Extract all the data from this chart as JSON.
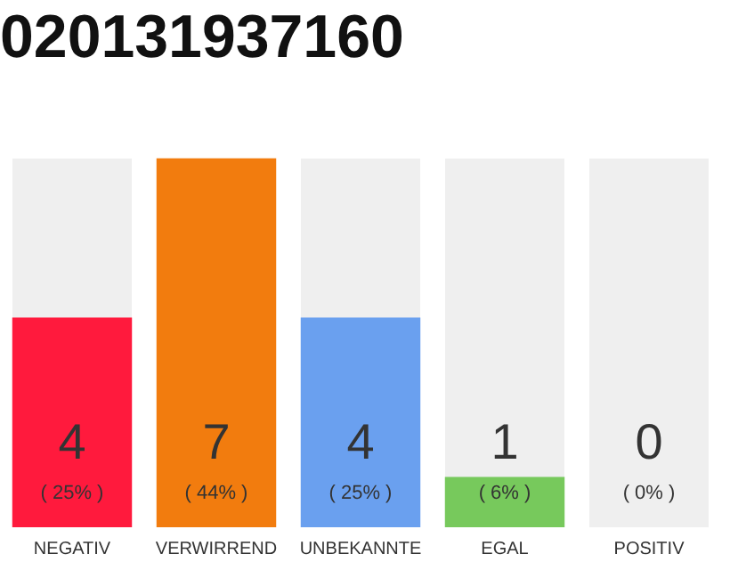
{
  "chart_data": {
    "type": "bar",
    "title": "020131937160",
    "categories": [
      "NEGATIV",
      "VERWIRREND",
      "UNBEKANNTE",
      "EGAL",
      "POSITIV"
    ],
    "values": [
      25,
      44,
      25,
      6,
      0
    ],
    "colors": [
      "#ff1a3d",
      "#f27c0e",
      "#6aa0ef",
      "#77c95c",
      "#cccccc"
    ],
    "value_labels": [
      "4\n( 25% )",
      "7\n( 44% )",
      "4\n( 25% )",
      "1\n( 6% )",
      "0\n( 0% )"
    ],
    "grid": false,
    "legend": false
  }
}
